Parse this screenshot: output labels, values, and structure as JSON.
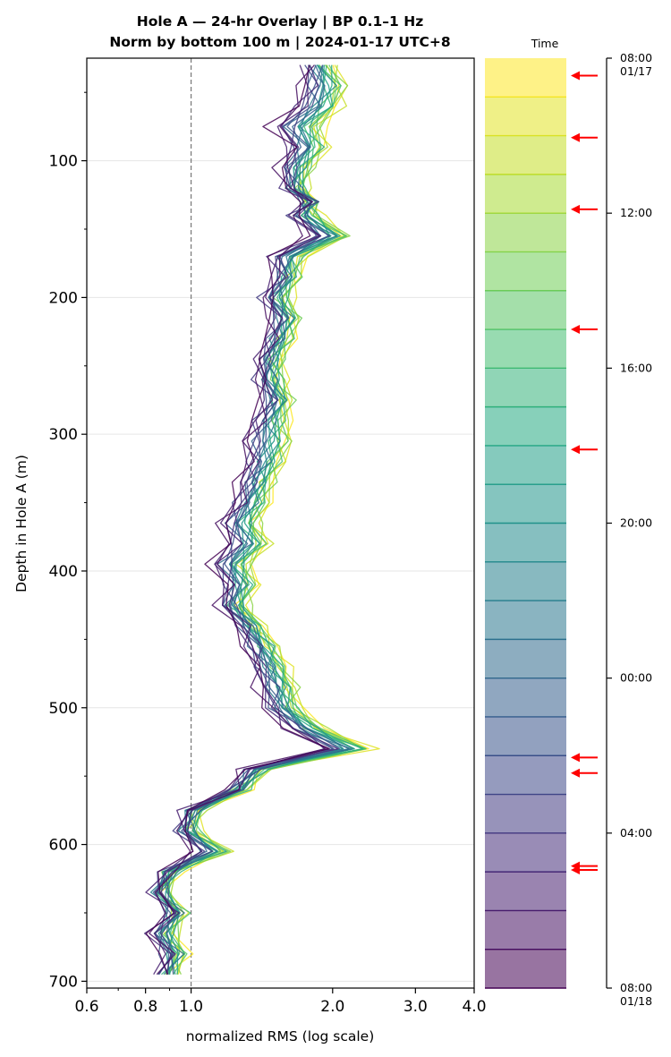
{
  "chart_data": {
    "type": "line",
    "title_line1": "Hole A — 24-hr Overlay  |  BP 0.1–1 Hz",
    "title_line2": "Norm by bottom 100 m  |  2024-01-17 UTC+8",
    "xlabel": "normalized RMS  (log scale)",
    "ylabel": "Depth in Hole A (m)",
    "x_scale": "log",
    "xlim": [
      0.6,
      4.0
    ],
    "ylim": [
      705,
      25
    ],
    "x_ticks": [
      {
        "value": 0.6,
        "label": "0.6"
      },
      {
        "value": 0.8,
        "label": "0.8"
      },
      {
        "value": 1.0,
        "label": "1.0"
      },
      {
        "value": 2.0,
        "label": "2.0"
      },
      {
        "value": 3.0,
        "label": "3.0"
      },
      {
        "value": 4.0,
        "label": "4.0"
      }
    ],
    "y_ticks": [
      {
        "value": 100,
        "label": "100"
      },
      {
        "value": 200,
        "label": "200"
      },
      {
        "value": 300,
        "label": "300"
      },
      {
        "value": 400,
        "label": "400"
      },
      {
        "value": 500,
        "label": "500"
      },
      {
        "value": 600,
        "label": "600"
      },
      {
        "value": 700,
        "label": "700"
      }
    ],
    "reference_line": {
      "x": 1.0,
      "style": "dashed"
    },
    "grid": "horizontal",
    "depths": [
      30,
      45,
      60,
      75,
      90,
      105,
      120,
      130,
      140,
      155,
      170,
      185,
      200,
      215,
      230,
      245,
      260,
      275,
      290,
      305,
      320,
      335,
      350,
      365,
      380,
      395,
      410,
      425,
      440,
      455,
      470,
      485,
      500,
      515,
      530,
      545,
      560,
      575,
      590,
      605,
      620,
      635,
      650,
      665,
      680,
      695
    ],
    "profile_early": [
      1.75,
      1.72,
      1.68,
      1.5,
      1.62,
      1.55,
      1.6,
      1.78,
      1.62,
      1.8,
      1.48,
      1.52,
      1.42,
      1.5,
      1.46,
      1.4,
      1.38,
      1.44,
      1.36,
      1.3,
      1.32,
      1.28,
      1.24,
      1.16,
      1.2,
      1.12,
      1.18,
      1.16,
      1.26,
      1.32,
      1.36,
      1.4,
      1.45,
      1.6,
      1.9,
      1.3,
      1.22,
      0.98,
      0.94,
      1.02,
      0.88,
      0.84,
      0.9,
      0.82,
      0.88,
      0.86
    ],
    "profile_late": [
      1.98,
      2.12,
      2.05,
      1.88,
      1.92,
      1.8,
      1.72,
      1.8,
      1.85,
      2.15,
      1.72,
      1.68,
      1.6,
      1.68,
      1.62,
      1.55,
      1.56,
      1.62,
      1.58,
      1.62,
      1.55,
      1.48,
      1.44,
      1.38,
      1.45,
      1.32,
      1.36,
      1.3,
      1.4,
      1.5,
      1.58,
      1.66,
      1.68,
      1.9,
      2.4,
      1.45,
      1.3,
      1.04,
      1.02,
      1.2,
      0.92,
      0.88,
      0.96,
      0.92,
      0.96,
      0.92
    ],
    "time_axis": {
      "label": "Time",
      "start_label": "08:00\n01/17",
      "end_label": "08:00\n01/18",
      "ticks": [
        {
          "hours": 0,
          "label": "08:00\n01/17"
        },
        {
          "hours": 4,
          "label": "12:00"
        },
        {
          "hours": 8,
          "label": "16:00"
        },
        {
          "hours": 12,
          "label": "20:00"
        },
        {
          "hours": 16,
          "label": "00:00"
        },
        {
          "hours": 20,
          "label": "04:00"
        },
        {
          "hours": 24,
          "label": "08:00\n01/18"
        }
      ],
      "num_traces": 24,
      "arrow_hours": [
        0.45,
        2.05,
        3.9,
        7.0,
        10.1,
        18.05,
        18.45,
        20.85,
        20.95
      ],
      "arrow_color": "#ff0000"
    }
  }
}
